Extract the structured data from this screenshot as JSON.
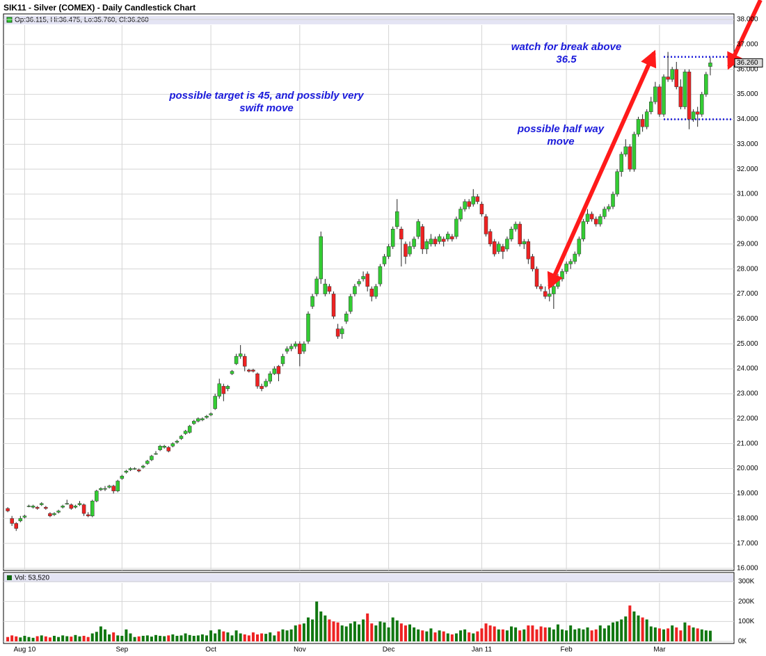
{
  "chart_data": {
    "type": "candlestick",
    "title": "SIK11 - Silver (COMEX) - Daily Candlestick Chart",
    "ohlc_label": "Op:36.115, Hi:36.475, Lo:35.760, Cl:36.260",
    "last_label": "36.260",
    "volume_label": "Vol: 53,520",
    "up_color": "#33cc33",
    "down_color": "#ee2222",
    "grid": true,
    "xlim": [
      -1,
      171.6
    ],
    "xticks": [
      {
        "value": 4,
        "label": "Aug 10"
      },
      {
        "value": 27,
        "label": "Sep"
      },
      {
        "value": 48,
        "label": "Oct"
      },
      {
        "value": 69,
        "label": "Nov"
      },
      {
        "value": 90,
        "label": "Dec"
      },
      {
        "value": 112,
        "label": "Jan 11"
      },
      {
        "value": 132,
        "label": "Feb"
      },
      {
        "value": 154,
        "label": "Mar"
      }
    ],
    "ylim": [
      16,
      38
    ],
    "yticks": [
      {
        "value": 16,
        "label": "16.000"
      },
      {
        "value": 17,
        "label": "17.000"
      },
      {
        "value": 18,
        "label": "18.000"
      },
      {
        "value": 19,
        "label": "19.000"
      },
      {
        "value": 20,
        "label": "20.000"
      },
      {
        "value": 21,
        "label": "21.000"
      },
      {
        "value": 22,
        "label": "22.000"
      },
      {
        "value": 23,
        "label": "23.000"
      },
      {
        "value": 24,
        "label": "24.000"
      },
      {
        "value": 25,
        "label": "25.000"
      },
      {
        "value": 26,
        "label": "26.000"
      },
      {
        "value": 27,
        "label": "27.000"
      },
      {
        "value": 28,
        "label": "28.000"
      },
      {
        "value": 29,
        "label": "29.000"
      },
      {
        "value": 30,
        "label": "30.000"
      },
      {
        "value": 31,
        "label": "31.000"
      },
      {
        "value": 32,
        "label": "32.000"
      },
      {
        "value": 33,
        "label": "33.000"
      },
      {
        "value": 34,
        "label": "34.000"
      },
      {
        "value": 35,
        "label": "35.000"
      },
      {
        "value": 36,
        "label": "36.000"
      },
      {
        "value": 37,
        "label": "37.000"
      },
      {
        "value": 38,
        "label": "38.000"
      }
    ],
    "vlim": [
      0,
      300000
    ],
    "vticks": [
      {
        "value": 0,
        "label": "0K"
      },
      {
        "value": 100000,
        "label": "100K"
      },
      {
        "value": 200000,
        "label": "200K"
      },
      {
        "value": 300000,
        "label": "300K"
      }
    ],
    "levels": [
      36.5,
      34.0
    ],
    "annotations": [
      [
        "possible target is 45, and possibly very",
        "swift move"
      ],
      [
        "watch for break above",
        "36.5"
      ],
      [
        "possible half way",
        "move"
      ]
    ],
    "candles": [
      [
        18.4,
        18.45,
        18.25,
        18.3
      ],
      [
        18.0,
        18.1,
        17.7,
        17.8
      ],
      [
        17.8,
        17.85,
        17.5,
        17.6
      ],
      [
        17.9,
        18.1,
        17.85,
        18.0
      ],
      [
        18.05,
        18.15,
        18.0,
        18.1
      ],
      [
        18.5,
        18.55,
        18.45,
        18.5
      ],
      [
        18.45,
        18.55,
        18.4,
        18.5
      ],
      [
        18.45,
        18.5,
        18.35,
        18.4
      ],
      [
        18.55,
        18.65,
        18.5,
        18.6
      ],
      [
        18.45,
        18.5,
        18.35,
        18.4
      ],
      [
        18.2,
        18.25,
        18.05,
        18.1
      ],
      [
        18.15,
        18.25,
        18.1,
        18.2
      ],
      [
        18.25,
        18.35,
        18.2,
        18.3
      ],
      [
        18.45,
        18.55,
        18.4,
        18.5
      ],
      [
        18.6,
        18.75,
        18.55,
        18.6
      ],
      [
        18.55,
        18.6,
        18.35,
        18.4
      ],
      [
        18.45,
        18.55,
        18.4,
        18.5
      ],
      [
        18.55,
        18.7,
        18.5,
        18.6
      ],
      [
        18.55,
        18.6,
        18.1,
        18.2
      ],
      [
        18.15,
        18.25,
        18.05,
        18.1
      ],
      [
        18.1,
        18.75,
        18.05,
        18.7
      ],
      [
        18.7,
        19.15,
        18.65,
        19.1
      ],
      [
        19.15,
        19.25,
        19.1,
        19.2
      ],
      [
        19.2,
        19.3,
        19.1,
        19.2
      ],
      [
        19.25,
        19.35,
        19.2,
        19.3
      ],
      [
        19.3,
        19.35,
        19.0,
        19.1
      ],
      [
        19.1,
        19.55,
        19.05,
        19.5
      ],
      [
        19.6,
        19.75,
        19.55,
        19.7
      ],
      [
        19.85,
        19.95,
        19.8,
        19.9
      ],
      [
        19.95,
        20.05,
        19.9,
        20.0
      ],
      [
        20.0,
        20.05,
        19.95,
        20.0
      ],
      [
        19.95,
        20.0,
        19.85,
        19.9
      ],
      [
        20.05,
        20.15,
        20.0,
        20.1
      ],
      [
        20.2,
        20.35,
        20.15,
        20.3
      ],
      [
        20.35,
        20.55,
        20.3,
        20.5
      ],
      [
        20.6,
        20.7,
        20.55,
        20.6
      ],
      [
        20.75,
        20.95,
        20.7,
        20.9
      ],
      [
        20.85,
        20.95,
        20.8,
        20.9
      ],
      [
        20.85,
        20.9,
        20.65,
        20.7
      ],
      [
        20.9,
        21.05,
        20.85,
        21.0
      ],
      [
        21.05,
        21.15,
        21.0,
        21.1
      ],
      [
        21.2,
        21.35,
        21.15,
        21.3
      ],
      [
        21.4,
        21.55,
        21.35,
        21.5
      ],
      [
        21.45,
        21.75,
        21.4,
        21.7
      ],
      [
        21.8,
        21.95,
        21.75,
        21.9
      ],
      [
        21.9,
        22.05,
        21.85,
        22.0
      ],
      [
        21.95,
        22.05,
        21.9,
        22.0
      ],
      [
        22.05,
        22.15,
        22.0,
        22.1
      ],
      [
        22.15,
        22.25,
        22.1,
        22.2
      ],
      [
        22.4,
        23.0,
        22.35,
        22.9
      ],
      [
        22.9,
        23.6,
        22.8,
        23.4
      ],
      [
        23.3,
        23.4,
        22.7,
        23.0
      ],
      [
        23.2,
        23.35,
        23.1,
        23.3
      ],
      [
        23.8,
        23.95,
        23.75,
        23.9
      ],
      [
        24.2,
        24.6,
        24.15,
        24.5
      ],
      [
        24.5,
        24.95,
        24.4,
        24.6
      ],
      [
        24.5,
        24.6,
        23.9,
        24.1
      ],
      [
        23.95,
        24.0,
        23.85,
        23.9
      ],
      [
        23.95,
        24.0,
        23.85,
        23.9
      ],
      [
        23.8,
        23.85,
        23.2,
        23.3
      ],
      [
        23.3,
        23.4,
        23.1,
        23.2
      ],
      [
        23.3,
        23.6,
        23.25,
        23.5
      ],
      [
        23.5,
        23.9,
        23.4,
        23.8
      ],
      [
        23.8,
        24.1,
        23.75,
        24.0
      ],
      [
        24.1,
        24.15,
        23.5,
        23.8
      ],
      [
        24.2,
        24.6,
        24.1,
        24.5
      ],
      [
        24.7,
        24.9,
        24.6,
        24.8
      ],
      [
        24.8,
        25.0,
        24.7,
        24.9
      ],
      [
        24.9,
        25.1,
        24.8,
        25.0
      ],
      [
        25.0,
        25.1,
        24.1,
        24.6
      ],
      [
        24.7,
        25.1,
        24.6,
        25.0
      ],
      [
        25.1,
        26.3,
        25.0,
        26.2
      ],
      [
        26.5,
        27.0,
        26.4,
        26.9
      ],
      [
        27.0,
        27.7,
        26.9,
        27.6
      ],
      [
        27.6,
        29.5,
        27.4,
        29.3
      ],
      [
        27.0,
        27.6,
        26.9,
        27.4
      ],
      [
        27.3,
        27.4,
        27.0,
        27.1
      ],
      [
        27.0,
        27.1,
        26.0,
        26.1
      ],
      [
        25.6,
        25.8,
        25.2,
        25.3
      ],
      [
        25.4,
        25.7,
        25.2,
        25.6
      ],
      [
        25.9,
        26.3,
        25.8,
        26.2
      ],
      [
        26.3,
        27.0,
        26.2,
        26.9
      ],
      [
        27.0,
        27.4,
        26.9,
        27.3
      ],
      [
        27.4,
        27.6,
        27.3,
        27.5
      ],
      [
        27.6,
        27.9,
        27.5,
        27.7
      ],
      [
        27.8,
        27.9,
        27.1,
        27.3
      ],
      [
        27.2,
        27.3,
        26.7,
        26.9
      ],
      [
        26.9,
        27.4,
        26.8,
        27.3
      ],
      [
        27.4,
        28.2,
        27.3,
        28.1
      ],
      [
        28.2,
        28.6,
        28.1,
        28.5
      ],
      [
        28.5,
        29.0,
        28.4,
        28.9
      ],
      [
        28.9,
        29.7,
        28.8,
        29.6
      ],
      [
        29.7,
        30.8,
        29.6,
        30.3
      ],
      [
        29.6,
        29.7,
        28.1,
        29.2
      ],
      [
        29.0,
        29.1,
        28.2,
        28.5
      ],
      [
        28.6,
        29.1,
        28.5,
        28.9
      ],
      [
        28.9,
        29.3,
        28.8,
        29.2
      ],
      [
        29.3,
        30.0,
        29.2,
        29.9
      ],
      [
        29.7,
        29.8,
        28.6,
        28.8
      ],
      [
        28.8,
        29.2,
        28.6,
        29.1
      ],
      [
        29.0,
        29.4,
        28.9,
        29.2
      ],
      [
        29.2,
        29.3,
        28.9,
        29.0
      ],
      [
        29.1,
        29.4,
        29.0,
        29.3
      ],
      [
        29.2,
        29.3,
        28.9,
        29.1
      ],
      [
        29.2,
        29.5,
        29.1,
        29.4
      ],
      [
        29.3,
        29.4,
        29.1,
        29.2
      ],
      [
        29.3,
        30.1,
        29.2,
        30.0
      ],
      [
        30.0,
        30.5,
        29.9,
        30.4
      ],
      [
        30.4,
        30.8,
        30.3,
        30.7
      ],
      [
        30.7,
        30.8,
        30.4,
        30.5
      ],
      [
        30.6,
        31.2,
        30.5,
        30.9
      ],
      [
        30.9,
        31.0,
        30.6,
        30.7
      ],
      [
        30.6,
        30.7,
        30.1,
        30.2
      ],
      [
        30.1,
        30.2,
        29.3,
        29.4
      ],
      [
        29.5,
        29.6,
        28.9,
        29.0
      ],
      [
        29.1,
        29.2,
        28.5,
        28.6
      ],
      [
        28.7,
        29.1,
        28.6,
        29.0
      ],
      [
        28.9,
        29.0,
        28.4,
        28.7
      ],
      [
        28.8,
        29.3,
        28.7,
        29.2
      ],
      [
        29.2,
        29.7,
        29.1,
        29.6
      ],
      [
        29.6,
        29.9,
        29.5,
        29.8
      ],
      [
        29.8,
        29.9,
        28.9,
        29.0
      ],
      [
        29.0,
        29.2,
        28.8,
        29.1
      ],
      [
        29.1,
        29.2,
        28.2,
        28.4
      ],
      [
        28.5,
        28.6,
        27.9,
        28.0
      ],
      [
        28.0,
        28.1,
        27.2,
        27.3
      ],
      [
        27.3,
        27.4,
        27.1,
        27.2
      ],
      [
        27.1,
        27.3,
        26.8,
        26.9
      ],
      [
        26.9,
        27.2,
        26.7,
        27.0
      ],
      [
        27.0,
        27.5,
        26.4,
        27.3
      ],
      [
        27.3,
        27.8,
        27.2,
        27.6
      ],
      [
        27.6,
        28.0,
        27.5,
        27.9
      ],
      [
        27.9,
        28.3,
        27.8,
        28.2
      ],
      [
        28.2,
        28.4,
        28.0,
        28.3
      ],
      [
        28.3,
        28.7,
        28.2,
        28.6
      ],
      [
        28.6,
        29.3,
        28.5,
        29.2
      ],
      [
        29.2,
        30.0,
        29.1,
        29.9
      ],
      [
        29.9,
        30.4,
        29.8,
        30.2
      ],
      [
        30.2,
        30.3,
        29.9,
        30.0
      ],
      [
        30.0,
        30.1,
        29.7,
        29.8
      ],
      [
        29.8,
        30.2,
        29.7,
        30.1
      ],
      [
        30.1,
        30.5,
        30.0,
        30.4
      ],
      [
        30.4,
        30.6,
        30.3,
        30.5
      ],
      [
        30.5,
        31.1,
        30.4,
        31.0
      ],
      [
        31.0,
        32.0,
        30.9,
        31.9
      ],
      [
        31.9,
        32.7,
        31.7,
        32.6
      ],
      [
        32.6,
        33.2,
        32.5,
        32.9
      ],
      [
        32.9,
        33.0,
        31.9,
        32.0
      ],
      [
        32.0,
        33.5,
        31.9,
        33.4
      ],
      [
        33.4,
        34.1,
        33.3,
        34.0
      ],
      [
        34.0,
        34.2,
        33.5,
        33.7
      ],
      [
        33.7,
        34.4,
        33.6,
        34.3
      ],
      [
        34.3,
        34.9,
        34.2,
        34.7
      ],
      [
        34.7,
        35.5,
        34.6,
        35.3
      ],
      [
        35.3,
        35.4,
        34.1,
        34.2
      ],
      [
        34.2,
        35.8,
        34.1,
        35.7
      ],
      [
        35.7,
        36.7,
        35.5,
        35.6
      ],
      [
        35.6,
        36.1,
        35.5,
        36.0
      ],
      [
        36.0,
        36.3,
        35.2,
        35.3
      ],
      [
        35.3,
        35.6,
        34.4,
        34.5
      ],
      [
        34.5,
        36.0,
        34.4,
        35.9
      ],
      [
        35.9,
        36.0,
        33.6,
        34.0
      ],
      [
        34.0,
        34.4,
        33.9,
        34.3
      ],
      [
        34.3,
        34.5,
        33.7,
        34.2
      ],
      [
        34.2,
        35.1,
        34.1,
        35.0
      ],
      [
        35.0,
        35.9,
        34.9,
        35.8
      ],
      [
        36.115,
        36.475,
        35.76,
        36.26
      ]
    ],
    "volume": [
      22000,
      30000,
      25000,
      20000,
      28000,
      22000,
      18000,
      26000,
      30000,
      25000,
      20000,
      28000,
      22000,
      30000,
      26000,
      24000,
      32000,
      25000,
      28000,
      22000,
      40000,
      48000,
      75000,
      60000,
      35000,
      45000,
      30000,
      28000,
      60000,
      40000,
      22000,
      25000,
      28000,
      30000,
      24000,
      32000,
      28000,
      26000,
      30000,
      35000,
      28000,
      30000,
      40000,
      32000,
      28000,
      30000,
      35000,
      30000,
      55000,
      40000,
      60000,
      50000,
      45000,
      30000,
      55000,
      40000,
      35000,
      30000,
      45000,
      35000,
      40000,
      38000,
      45000,
      30000,
      50000,
      60000,
      55000,
      60000,
      80000,
      85000,
      90000,
      120000,
      110000,
      200000,
      150000,
      130000,
      110000,
      100000,
      95000,
      80000,
      75000,
      90000,
      100000,
      85000,
      110000,
      140000,
      90000,
      80000,
      100000,
      95000,
      70000,
      120000,
      105000,
      90000,
      80000,
      85000,
      70000,
      60000,
      55000,
      50000,
      65000,
      45000,
      55000,
      50000,
      40000,
      35000,
      40000,
      55000,
      60000,
      45000,
      40000,
      50000,
      65000,
      90000,
      80000,
      75000,
      60000,
      60000,
      55000,
      75000,
      70000,
      55000,
      60000,
      80000,
      80000,
      60000,
      75000,
      70000,
      70000,
      60000,
      85000,
      60000,
      55000,
      80000,
      60000,
      65000,
      60000,
      70000,
      55000,
      60000,
      80000,
      65000,
      80000,
      95000,
      100000,
      110000,
      125000,
      180000,
      150000,
      130000,
      120000,
      110000,
      75000,
      70000,
      65000,
      60000,
      65000,
      80000,
      70000,
      55000,
      95000,
      80000,
      70000,
      65000,
      60000,
      55000,
      53520
    ]
  }
}
